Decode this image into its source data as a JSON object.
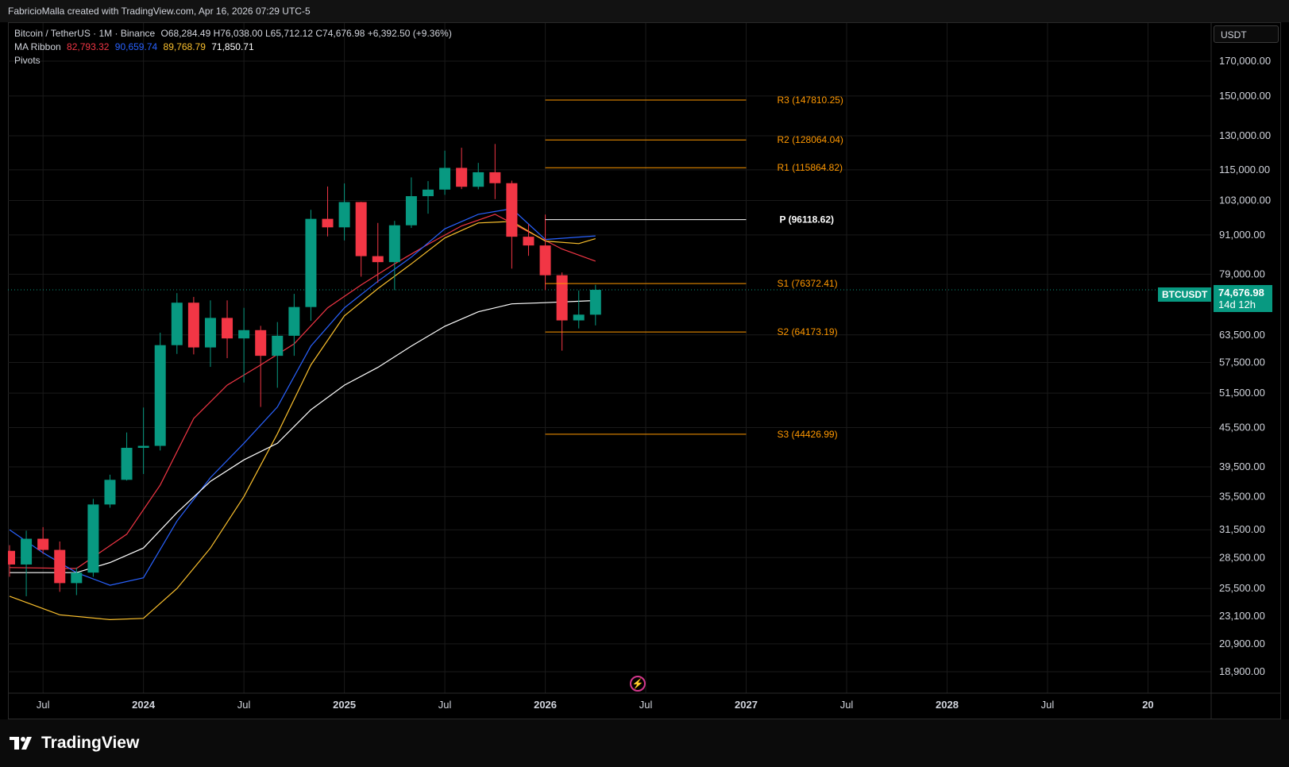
{
  "header": {
    "credit": "FabricioMalla created with TradingView.com, Apr 16, 2026 07:29 UTC-5"
  },
  "legend": {
    "symbol": "Bitcoin / TetherUS · 1M · Binance",
    "ohlc": "O68,284.49 H76,038.00 L65,712.12 C74,676.98 +6,392.50 (+9.36%)",
    "ma_label": "MA Ribbon",
    "ma_values": [
      {
        "text": "82,793.32",
        "color": "#f23645"
      },
      {
        "text": "90,659.74",
        "color": "#2962ff"
      },
      {
        "text": "89,768.79",
        "color": "#fbc02d"
      },
      {
        "text": "71,850.71",
        "color": "#ffffff"
      }
    ],
    "pivots_label": "Pivots"
  },
  "price_scale": {
    "unit": "USDT",
    "last_symbol": "BTCUSDT",
    "last_price": "74,676.98",
    "countdown": "14d 12h"
  },
  "branding": {
    "logo_text": "TradingView"
  },
  "colors": {
    "up": "#089981",
    "down": "#f23645",
    "pivot": "#ff9800",
    "pivot_p": "#ffffff",
    "grid": "#1a1a1a",
    "axis_text": "#d1d4dc",
    "ma1": "#f23645",
    "ma2": "#2962ff",
    "ma3": "#fbc02d",
    "ma4": "#ffffff"
  },
  "chart_data": {
    "type": "candlestick",
    "scale": "log",
    "ylim": [
      17500,
      195000
    ],
    "y_ticks": [
      18900,
      20900,
      23100,
      25500,
      28500,
      31500,
      35500,
      39500,
      45500,
      51500,
      57500,
      63500,
      79000,
      91000,
      103000,
      115000,
      130000,
      150000,
      170000
    ],
    "y_tick_labels": [
      "18,900.00",
      "20,900.00",
      "23,100.00",
      "25,500.00",
      "28,500.00",
      "31,500.00",
      "35,500.00",
      "39,500.00",
      "45,500.00",
      "51,500.00",
      "57,500.00",
      "63,500.00",
      "79,000.00",
      "91,000.00",
      "103,000.00",
      "115,000.00",
      "130,000.00",
      "150,000.00",
      "170,000.00"
    ],
    "x_range": [
      "2023-05",
      "2029-01"
    ],
    "x_ticks": [
      {
        "date": "2023-07",
        "label": "Jul",
        "bold": false
      },
      {
        "date": "2024-01",
        "label": "2024",
        "bold": true
      },
      {
        "date": "2024-07",
        "label": "Jul",
        "bold": false
      },
      {
        "date": "2025-01",
        "label": "2025",
        "bold": true
      },
      {
        "date": "2025-07",
        "label": "Jul",
        "bold": false
      },
      {
        "date": "2026-01",
        "label": "2026",
        "bold": true
      },
      {
        "date": "2026-07",
        "label": "Jul",
        "bold": false
      },
      {
        "date": "2027-01",
        "label": "2027",
        "bold": true
      },
      {
        "date": "2027-07",
        "label": "Jul",
        "bold": false
      },
      {
        "date": "2028-01",
        "label": "2028",
        "bold": true
      },
      {
        "date": "2028-07",
        "label": "Jul",
        "bold": false
      },
      {
        "date": "2029-01",
        "label": "20",
        "bold": true
      }
    ],
    "candles": [
      {
        "date": "2023-05",
        "o": 29200,
        "h": 29800,
        "l": 26600,
        "c": 27800
      },
      {
        "date": "2023-06",
        "o": 27800,
        "h": 31400,
        "l": 24800,
        "c": 30500
      },
      {
        "date": "2023-07",
        "o": 30500,
        "h": 31800,
        "l": 28900,
        "c": 29300
      },
      {
        "date": "2023-08",
        "o": 29300,
        "h": 30200,
        "l": 25200,
        "c": 26000
      },
      {
        "date": "2023-09",
        "o": 26000,
        "h": 27500,
        "l": 24900,
        "c": 27000
      },
      {
        "date": "2023-10",
        "o": 27000,
        "h": 35200,
        "l": 26600,
        "c": 34500
      },
      {
        "date": "2023-11",
        "o": 34500,
        "h": 38400,
        "l": 34100,
        "c": 37700
      },
      {
        "date": "2023-12",
        "o": 37700,
        "h": 44700,
        "l": 37600,
        "c": 42300
      },
      {
        "date": "2024-01",
        "o": 42300,
        "h": 48900,
        "l": 38500,
        "c": 42600
      },
      {
        "date": "2024-02",
        "o": 42600,
        "h": 64000,
        "l": 41900,
        "c": 61200
      },
      {
        "date": "2024-03",
        "o": 61200,
        "h": 73800,
        "l": 59300,
        "c": 71300
      },
      {
        "date": "2024-04",
        "o": 71300,
        "h": 72800,
        "l": 59200,
        "c": 60700
      },
      {
        "date": "2024-05",
        "o": 60700,
        "h": 71900,
        "l": 56600,
        "c": 67500
      },
      {
        "date": "2024-06",
        "o": 67500,
        "h": 71900,
        "l": 58400,
        "c": 62700
      },
      {
        "date": "2024-07",
        "o": 62700,
        "h": 70000,
        "l": 53500,
        "c": 64600
      },
      {
        "date": "2024-08",
        "o": 64600,
        "h": 65600,
        "l": 49000,
        "c": 58900
      },
      {
        "date": "2024-09",
        "o": 58900,
        "h": 66500,
        "l": 52500,
        "c": 63300
      },
      {
        "date": "2024-10",
        "o": 63300,
        "h": 73600,
        "l": 58900,
        "c": 70200
      },
      {
        "date": "2024-11",
        "o": 70200,
        "h": 99600,
        "l": 66800,
        "c": 96400
      },
      {
        "date": "2024-12",
        "o": 96400,
        "h": 108300,
        "l": 90500,
        "c": 93500
      },
      {
        "date": "2025-01",
        "o": 93500,
        "h": 109500,
        "l": 89200,
        "c": 102400
      },
      {
        "date": "2025-02",
        "o": 102400,
        "h": 102500,
        "l": 78300,
        "c": 84300
      },
      {
        "date": "2025-03",
        "o": 84300,
        "h": 95000,
        "l": 76600,
        "c": 82500
      },
      {
        "date": "2025-04",
        "o": 82500,
        "h": 95700,
        "l": 74600,
        "c": 94200
      },
      {
        "date": "2025-05",
        "o": 94200,
        "h": 111900,
        "l": 93300,
        "c": 104600
      },
      {
        "date": "2025-06",
        "o": 104600,
        "h": 110400,
        "l": 98200,
        "c": 107100
      },
      {
        "date": "2025-07",
        "o": 107100,
        "h": 123200,
        "l": 105100,
        "c": 115800
      },
      {
        "date": "2025-08",
        "o": 115800,
        "h": 124500,
        "l": 107300,
        "c": 108200
      },
      {
        "date": "2025-09",
        "o": 108200,
        "h": 117900,
        "l": 107200,
        "c": 114000
      },
      {
        "date": "2025-10",
        "o": 114000,
        "h": 126200,
        "l": 103500,
        "c": 109600
      },
      {
        "date": "2025-11",
        "o": 109600,
        "h": 110600,
        "l": 80600,
        "c": 90400
      },
      {
        "date": "2025-12",
        "o": 90400,
        "h": 94600,
        "l": 84400,
        "c": 87600
      },
      {
        "date": "2026-01",
        "o": 87600,
        "h": 97900,
        "l": 74600,
        "c": 78700
      },
      {
        "date": "2026-02",
        "o": 78700,
        "h": 79500,
        "l": 60000,
        "c": 66900
      },
      {
        "date": "2026-03",
        "o": 66900,
        "h": 74500,
        "l": 65000,
        "c": 68300
      },
      {
        "date": "2026-04",
        "o": 68284.49,
        "h": 76038.0,
        "l": 65712.12,
        "c": 74676.98
      }
    ],
    "ma_ribbon": [
      {
        "name": "",
        "color": "#f23645",
        "points": [
          [
            "2023-05",
            27500
          ],
          [
            "2023-09",
            27400
          ],
          [
            "2023-12",
            31000
          ],
          [
            "2024-02",
            37000
          ],
          [
            "2024-04",
            47000
          ],
          [
            "2024-06",
            53000
          ],
          [
            "2024-08",
            57000
          ],
          [
            "2024-10",
            61500
          ],
          [
            "2024-12",
            70000
          ],
          [
            "2025-02",
            76000
          ],
          [
            "2025-04",
            82000
          ],
          [
            "2025-06",
            88000
          ],
          [
            "2025-08",
            94000
          ],
          [
            "2025-10",
            98000
          ],
          [
            "2025-12",
            92000
          ],
          [
            "2026-02",
            86500
          ],
          [
            "2026-04",
            82793.32
          ]
        ]
      },
      {
        "name": "",
        "color": "#2962ff",
        "points": [
          [
            "2023-05",
            31500
          ],
          [
            "2023-07",
            29000
          ],
          [
            "2023-09",
            27000
          ],
          [
            "2023-11",
            25800
          ],
          [
            "2024-01",
            26500
          ],
          [
            "2024-03",
            32500
          ],
          [
            "2024-05",
            38000
          ],
          [
            "2024-07",
            43000
          ],
          [
            "2024-09",
            49000
          ],
          [
            "2024-11",
            61000
          ],
          [
            "2025-01",
            70000
          ],
          [
            "2025-03",
            77000
          ],
          [
            "2025-05",
            84000
          ],
          [
            "2025-07",
            93000
          ],
          [
            "2025-09",
            98000
          ],
          [
            "2025-11",
            100000
          ],
          [
            "2026-01",
            89500
          ],
          [
            "2026-04",
            90659.74
          ]
        ]
      },
      {
        "name": "",
        "color": "#fbc02d",
        "points": [
          [
            "2023-05",
            24800
          ],
          [
            "2023-08",
            23200
          ],
          [
            "2023-11",
            22800
          ],
          [
            "2024-01",
            22900
          ],
          [
            "2024-03",
            25500
          ],
          [
            "2024-05",
            29500
          ],
          [
            "2024-07",
            35500
          ],
          [
            "2024-09",
            44500
          ],
          [
            "2024-11",
            57000
          ],
          [
            "2025-01",
            68000
          ],
          [
            "2025-03",
            75000
          ],
          [
            "2025-05",
            82000
          ],
          [
            "2025-07",
            90000
          ],
          [
            "2025-09",
            95000
          ],
          [
            "2025-11",
            95500
          ],
          [
            "2026-01",
            89000
          ],
          [
            "2026-03",
            88200
          ],
          [
            "2026-04",
            89768.79
          ]
        ]
      },
      {
        "name": "",
        "color": "#ffffff",
        "points": [
          [
            "2023-05",
            27000
          ],
          [
            "2023-09",
            27000
          ],
          [
            "2023-11",
            28000
          ],
          [
            "2024-01",
            29500
          ],
          [
            "2024-03",
            33500
          ],
          [
            "2024-05",
            37500
          ],
          [
            "2024-07",
            40500
          ],
          [
            "2024-09",
            43000
          ],
          [
            "2024-11",
            48500
          ],
          [
            "2025-01",
            53000
          ],
          [
            "2025-03",
            56500
          ],
          [
            "2025-05",
            61000
          ],
          [
            "2025-07",
            65500
          ],
          [
            "2025-09",
            69000
          ],
          [
            "2025-11",
            71000
          ],
          [
            "2026-01",
            71300
          ],
          [
            "2026-04",
            71850.71
          ]
        ]
      }
    ],
    "pivots": [
      {
        "label": "R3 (147810.25)",
        "value": 147810.25,
        "color": "#ff9800"
      },
      {
        "label": "R2 (128064.04)",
        "value": 128064.04,
        "color": "#ff9800"
      },
      {
        "label": "R1 (115864.82)",
        "value": 115864.82,
        "color": "#ff9800"
      },
      {
        "label": "P (96118.62)",
        "value": 96118.62,
        "color": "#ffffff"
      },
      {
        "label": "S1 (76372.41)",
        "value": 76372.41,
        "color": "#ff9800"
      },
      {
        "label": "S2 (64173.19)",
        "value": 64173.19,
        "color": "#ff9800"
      },
      {
        "label": "S3 (44426.99)",
        "value": 44426.99,
        "color": "#ff9800"
      }
    ],
    "pivot_range": [
      "2026-01",
      "2027-01"
    ],
    "last_price": 74676.98
  }
}
